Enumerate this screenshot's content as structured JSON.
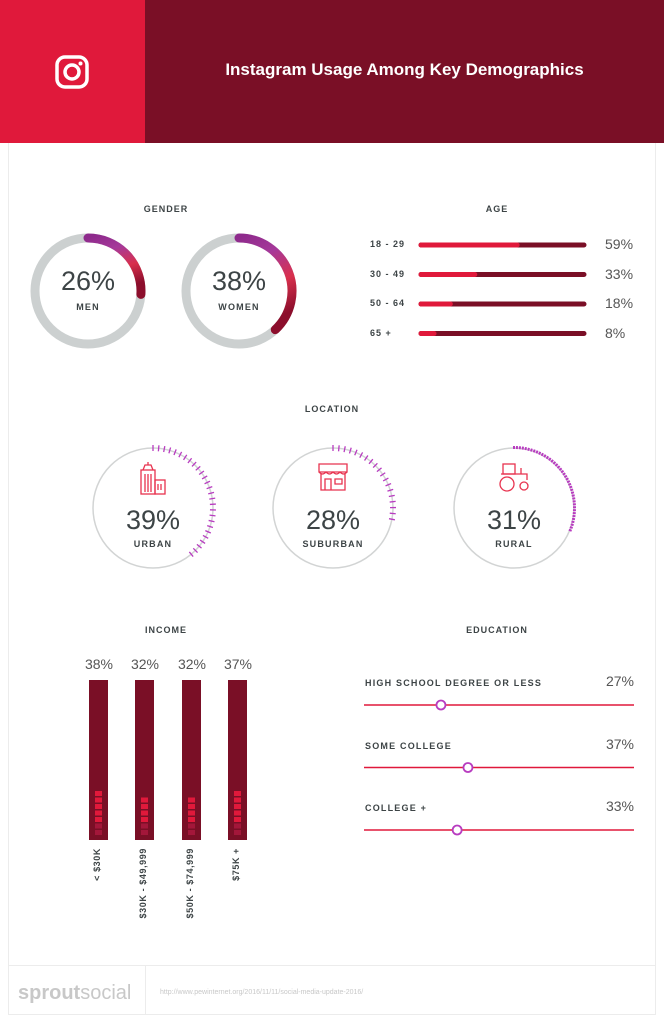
{
  "header": {
    "title": "Instagram Usage Among Key Demographics",
    "icon": "instagram-icon",
    "colors": {
      "left": "#e0193b",
      "right": "#7a0f26"
    }
  },
  "chart_data": [
    {
      "type": "donut",
      "title": "GENDER",
      "categories": [
        "MEN",
        "WOMEN"
      ],
      "values": [
        26,
        38
      ],
      "labels": [
        "26%",
        "38%"
      ],
      "range": [
        0,
        100
      ]
    },
    {
      "type": "bar",
      "orientation": "horizontal",
      "title": "AGE",
      "categories": [
        "18 - 29",
        "30 - 49",
        "50 - 64",
        "65 +"
      ],
      "values": [
        59,
        33,
        18,
        8
      ],
      "labels": [
        "59%",
        "33%",
        "18%",
        "8%"
      ],
      "range": [
        0,
        100
      ]
    },
    {
      "type": "donut",
      "title": "LOCATION",
      "categories": [
        "URBAN",
        "SUBURBAN",
        "RURAL"
      ],
      "values": [
        39,
        28,
        31
      ],
      "labels": [
        "39%",
        "28%",
        "31%"
      ],
      "icons": [
        "city-building-icon",
        "storefront-icon",
        "tractor-icon"
      ],
      "range": [
        0,
        100
      ]
    },
    {
      "type": "bar",
      "orientation": "vertical",
      "title": "INCOME",
      "categories": [
        "< $30K",
        "$30K - $49,999",
        "$50K - $74,999",
        "$75K +"
      ],
      "values": [
        38,
        32,
        32,
        37
      ],
      "labels": [
        "38%",
        "32%",
        "32%",
        "37%"
      ]
    },
    {
      "type": "slider",
      "title": "EDUCATION",
      "categories": [
        "HIGH SCHOOL DEGREE OR LESS",
        "SOME COLLEGE",
        "COLLEGE +"
      ],
      "values": [
        27,
        37,
        33
      ],
      "labels": [
        "27%",
        "37%",
        "33%"
      ],
      "range": [
        0,
        100
      ]
    }
  ],
  "footer": {
    "logo": "sproutsocial",
    "logo_bold": "sprout",
    "logo_light": "social",
    "source": "http://www.pewinternet.org/2016/11/11/social-media-update-2016/"
  }
}
